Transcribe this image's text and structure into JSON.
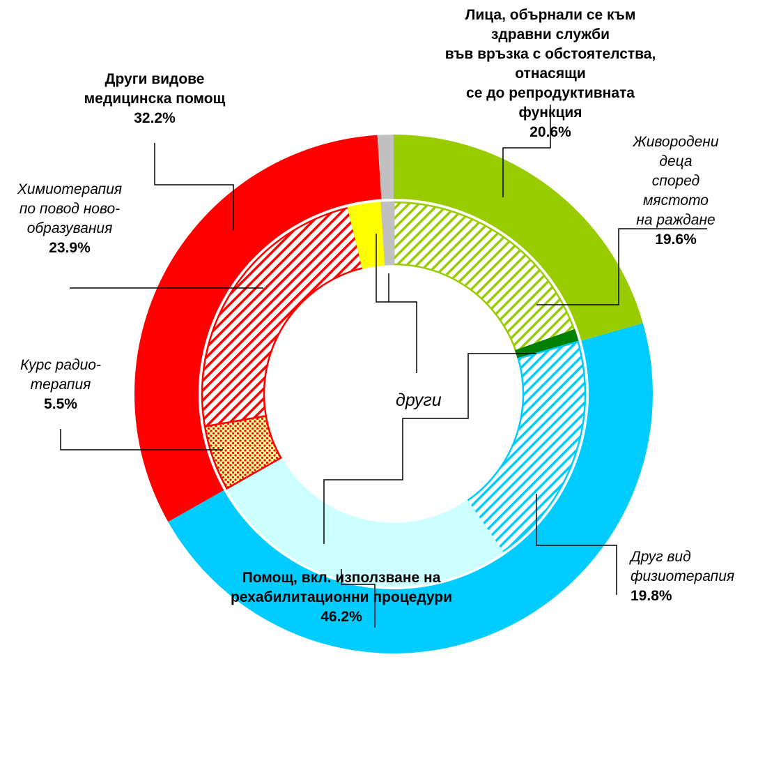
{
  "chart_data": {
    "type": "donut",
    "annotations": [
      {
        "text": "други"
      }
    ],
    "rings": [
      {
        "categories": [
          "Лица, обърнали се към здравни служби\nвъв връзка с обстоятелства, отнасящи\nсе до репродуктивната функция",
          "Помощ, вкл. използване на\nрехабилитационни процедури",
          "Други видове\nмедицинска помощ",
          null
        ],
        "values": [
          20.6,
          46.2,
          32.2,
          1.0
        ],
        "value_labels": [
          "20.6%",
          "46.2%",
          "32.2%",
          null
        ],
        "colors": [
          "#99cc00",
          "#00ccff",
          "#ff0000",
          "#c0c0c0"
        ],
        "patterns": [
          null,
          null,
          null,
          null
        ]
      },
      {
        "categories": [
          "Живородени деца\nспоред мястото\nна раждане",
          null,
          "Друг вид\nфизиотерапия",
          null,
          "Курс радио-\nтерапия",
          "Химиотерапия\nпо повод ново-\nобразувания",
          null,
          null
        ],
        "values": [
          19.6,
          1.0,
          19.8,
          26.4,
          5.5,
          23.9,
          2.8,
          1.0
        ],
        "value_labels": [
          "19.6%",
          null,
          "19.8%",
          null,
          "5.5%",
          "23.9%",
          null,
          null
        ],
        "colors": [
          "#99cc00",
          "#008000",
          "#00ccff",
          "#ccffff",
          "#ff0000",
          "#ff0000",
          "#ffff00",
          "#c0c0c0"
        ],
        "patterns": [
          "hatch",
          null,
          "hatch",
          null,
          "dots",
          "hatch",
          null,
          null
        ]
      }
    ]
  }
}
